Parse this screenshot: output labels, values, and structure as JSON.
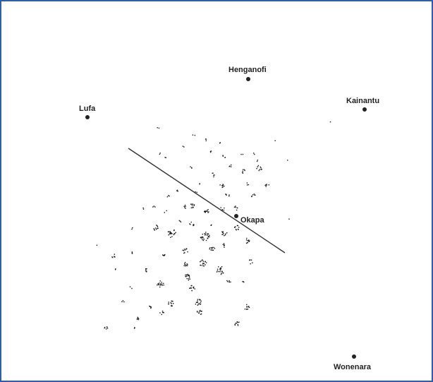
{
  "map": {
    "places": [
      {
        "id": "henganofi",
        "name": "Henganofi"
      },
      {
        "id": "lufa",
        "name": "Lufa"
      },
      {
        "id": "kainantu",
        "name": "Kainantu"
      },
      {
        "id": "okapa",
        "name": "Okapa"
      },
      {
        "id": "wonenara",
        "name": "Wonenara"
      }
    ],
    "colors": {
      "frame": "#2e5fa8",
      "ink": "#222222",
      "background": "#ffffff"
    }
  }
}
